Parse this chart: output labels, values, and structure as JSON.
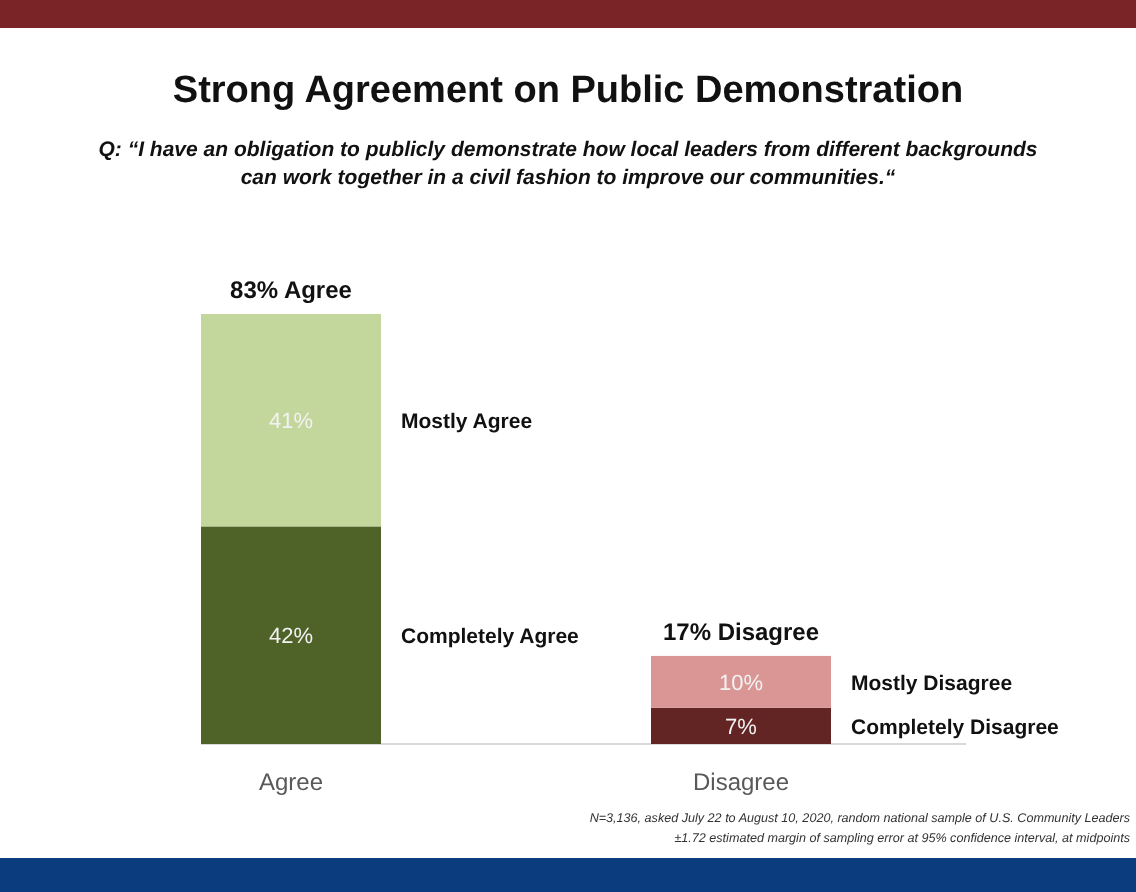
{
  "chart_data": {
    "type": "bar",
    "stacked": true,
    "title": "Strong Agreement on Public Demonstration",
    "subtitle": "Q: “I have an obligation to publicly demonstrate how local leaders from different backgrounds can work together in a civil fashion to improve our communities.“",
    "categories": [
      "Agree",
      "Disagree"
    ],
    "series": [
      {
        "name": "Completely Agree",
        "color": "#4f6228",
        "values": [
          42,
          null
        ],
        "value_labels": [
          "42%",
          null
        ]
      },
      {
        "name": "Mostly Agree",
        "color": "#c3d69b",
        "values": [
          41,
          null
        ],
        "value_labels": [
          "41%",
          null
        ]
      },
      {
        "name": "Completely Disagree",
        "color": "#632523",
        "values": [
          null,
          7
        ],
        "value_labels": [
          null,
          "7%"
        ]
      },
      {
        "name": "Mostly Disagree",
        "color": "#d99694",
        "values": [
          null,
          10
        ],
        "value_labels": [
          null,
          "10%"
        ]
      }
    ],
    "totals": [
      "83% Agree",
      "17% Disagree"
    ],
    "annotations": [
      "N=3,136, asked July 22 to August 10, 2020, random national sample of U.S. Community Leaders",
      "±1.72 estimated margin of sampling error at 95% confidence interval, at midpoints"
    ]
  }
}
